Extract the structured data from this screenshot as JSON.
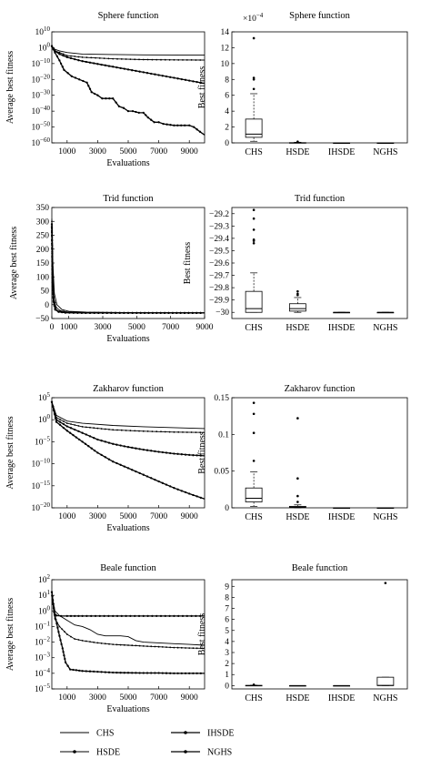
{
  "figure": {
    "legend": [
      "CHS",
      "HSDE",
      "IHSDE",
      "NGHS"
    ]
  },
  "chart_data": [
    {
      "type": "line",
      "title": "Sphere function",
      "xlabel": "Evaluations",
      "ylabel": "Average best fitness",
      "x_ticks": [
        1000,
        3000,
        5000,
        7000,
        9000
      ],
      "xlim": [
        0,
        10000
      ],
      "yscale": "log",
      "ylim": [
        -60,
        10
      ],
      "y_ticks": [
        {
          "exp": 10,
          "label": "10"
        },
        {
          "exp": 0,
          "label": "0"
        },
        {
          "exp": -10,
          "label": "−10"
        },
        {
          "exp": -20,
          "label": "−20"
        },
        {
          "exp": -30,
          "label": "−30"
        },
        {
          "exp": -40,
          "label": "−40"
        },
        {
          "exp": -50,
          "label": "−50"
        },
        {
          "exp": -60,
          "label": "−60"
        }
      ],
      "series": [
        {
          "name": "CHS",
          "x": [
            0,
            200,
            500,
            1000,
            2000,
            4000,
            6000,
            8000,
            10000
          ],
          "y_exp": [
            1,
            -1,
            -2,
            -3,
            -4,
            -4.3,
            -4.5,
            -4.6,
            -4.7
          ]
        },
        {
          "name": "HSDE",
          "x": [
            0,
            200,
            500,
            1000,
            2000,
            4000,
            6000,
            8000,
            10000
          ],
          "y_exp": [
            1,
            -2,
            -3,
            -5,
            -6,
            -7,
            -7.5,
            -7.7,
            -7.8
          ]
        },
        {
          "name": "IHSDE",
          "x": [
            0,
            200,
            500,
            1000,
            2000,
            4000,
            6000,
            8000,
            10000
          ],
          "y_exp": [
            1,
            -2,
            -4,
            -6,
            -8.5,
            -12,
            -15.5,
            -19,
            -22.5
          ]
        },
        {
          "name": "NGHS",
          "x": [
            0,
            200,
            500,
            800,
            1300,
            1800,
            2300,
            2600,
            3000,
            3300,
            4000,
            4400,
            4700,
            5000,
            5300,
            5700,
            6000,
            6300,
            6700,
            7000,
            7300,
            8000,
            8700,
            9000,
            9300,
            9700,
            10000
          ],
          "y_exp": [
            1,
            -3,
            -8,
            -14,
            -18,
            -20,
            -22,
            -28,
            -30,
            -32,
            -32,
            -37,
            -38,
            -40,
            -40,
            -41,
            -41,
            -44,
            -47,
            -47,
            -48,
            -49,
            -49,
            -49,
            -50,
            -53,
            -55
          ]
        }
      ]
    },
    {
      "type": "box",
      "title": "Sphere function",
      "ylabel": "Best fitness",
      "multiplier": "×10",
      "multiplier_exp": "−4",
      "ylim": [
        0,
        14
      ],
      "y_ticks": [
        0,
        2,
        4,
        6,
        8,
        10,
        12,
        14
      ],
      "categories": [
        "CHS",
        "HSDE",
        "IHSDE",
        "NGHS"
      ],
      "boxes": [
        {
          "min": 0.2,
          "q1": 0.7,
          "median": 1.1,
          "q3": 3.0,
          "max": 6.2,
          "outliers": [
            6.8,
            8.0,
            8.2,
            13.2
          ]
        },
        {
          "min": 0,
          "q1": 0,
          "median": 0,
          "q3": 0.03,
          "max": 0.08,
          "outliers": [
            0.15
          ]
        },
        {
          "min": 0,
          "q1": 0,
          "median": 0,
          "q3": 0,
          "max": 0,
          "outliers": []
        },
        {
          "min": 0,
          "q1": 0,
          "median": 0,
          "q3": 0,
          "max": 0,
          "outliers": []
        }
      ]
    },
    {
      "type": "line",
      "title": "Trid function",
      "xlabel": "Evaluations",
      "ylabel": "Average best fitness",
      "x_ticks": [
        0,
        1000,
        3000,
        5000,
        7000,
        9000
      ],
      "xlim": [
        0,
        9000
      ],
      "ylim": [
        -50,
        350
      ],
      "y_ticks": [
        350,
        300,
        250,
        200,
        150,
        100,
        50,
        0,
        -50
      ],
      "series": [
        {
          "name": "CHS",
          "x": [
            0,
            60,
            150,
            300,
            600,
            1000,
            2000,
            5000,
            9000
          ],
          "y": [
            310,
            150,
            40,
            0,
            -18,
            -24,
            -27,
            -29,
            -29.5
          ]
        },
        {
          "name": "HSDE",
          "x": [
            0,
            50,
            120,
            250,
            500,
            900,
            2000,
            5000,
            9000
          ],
          "y": [
            300,
            120,
            25,
            -10,
            -22,
            -27,
            -29,
            -29.8,
            -30
          ]
        },
        {
          "name": "IHSDE",
          "x": [
            0,
            40,
            100,
            200,
            400,
            800,
            2000,
            5000,
            9000
          ],
          "y": [
            280,
            100,
            15,
            -15,
            -25,
            -28,
            -29.8,
            -30,
            -30
          ]
        },
        {
          "name": "NGHS",
          "x": [
            0,
            40,
            100,
            200,
            400,
            800,
            2000,
            5000,
            9000
          ],
          "y": [
            290,
            80,
            10,
            -18,
            -26,
            -29,
            -29.9,
            -30,
            -30
          ]
        }
      ]
    },
    {
      "type": "box",
      "title": "Trid function",
      "ylabel": "Best fitness",
      "ylim": [
        -30.05,
        -29.15
      ],
      "y_ticks": [
        -29.2,
        -29.3,
        -29.4,
        -29.5,
        -29.6,
        -29.7,
        -29.8,
        -29.9,
        -30
      ],
      "y_tick_labels": [
        "−29.2",
        "−29.3",
        "−29.4",
        "−29.5",
        "−29.6",
        "−29.7",
        "−29.8",
        "−29.9",
        "−30"
      ],
      "categories": [
        "CHS",
        "HSDE",
        "IHSDE",
        "NGHS"
      ],
      "boxes": [
        {
          "min": -30,
          "q1": -30,
          "median": -29.97,
          "q3": -29.83,
          "max": -29.68,
          "outliers": [
            -29.17,
            -29.24,
            -29.33,
            -29.41,
            -29.42,
            -29.44
          ]
        },
        {
          "min": -30,
          "q1": -29.99,
          "median": -29.97,
          "q3": -29.93,
          "max": -29.88,
          "outliers": [
            -29.83,
            -29.85,
            -29.86
          ]
        },
        {
          "min": -30,
          "q1": -30,
          "median": -30,
          "q3": -30,
          "max": -30,
          "outliers": []
        },
        {
          "min": -30,
          "q1": -30,
          "median": -30,
          "q3": -30,
          "max": -30,
          "outliers": []
        }
      ]
    },
    {
      "type": "line",
      "title": "Zakharov function",
      "xlabel": "Evaluations",
      "ylabel": "Average best fitness",
      "x_ticks": [
        1000,
        3000,
        5000,
        7000,
        9000
      ],
      "xlim": [
        0,
        10000
      ],
      "yscale": "log",
      "ylim": [
        -20,
        5
      ],
      "y_ticks": [
        {
          "exp": 5,
          "label": "5"
        },
        {
          "exp": 0,
          "label": "0"
        },
        {
          "exp": -5,
          "label": "−5"
        },
        {
          "exp": -10,
          "label": "−10"
        },
        {
          "exp": -15,
          "label": "−15"
        },
        {
          "exp": -20,
          "label": "−20"
        }
      ],
      "series": [
        {
          "name": "CHS",
          "x": [
            0,
            300,
            1000,
            2000,
            4000,
            6000,
            8000,
            10000
          ],
          "y_exp": [
            4,
            1,
            -0.3,
            -0.8,
            -1.3,
            -1.6,
            -1.8,
            -2
          ]
        },
        {
          "name": "HSDE",
          "x": [
            0,
            300,
            1000,
            2000,
            4000,
            6000,
            8000,
            10000
          ],
          "y_exp": [
            4,
            0.5,
            -0.8,
            -1.6,
            -2.3,
            -2.6,
            -2.8,
            -2.9
          ]
        },
        {
          "name": "IHSDE",
          "x": [
            0,
            300,
            1000,
            2000,
            3000,
            4000,
            5000,
            6000,
            7000,
            8000,
            9000,
            10000
          ],
          "y_exp": [
            4,
            0,
            -1.5,
            -3,
            -4.5,
            -5.5,
            -6.2,
            -6.8,
            -7.3,
            -7.7,
            -8,
            -8.2
          ]
        },
        {
          "name": "NGHS",
          "x": [
            0,
            300,
            1000,
            2000,
            3000,
            4000,
            5000,
            6000,
            7000,
            8000,
            9000,
            10000
          ],
          "y_exp": [
            4,
            -0.5,
            -2.5,
            -5,
            -7.5,
            -9.5,
            -11,
            -12.5,
            -14,
            -15.5,
            -16.8,
            -18
          ]
        }
      ]
    },
    {
      "type": "box",
      "title": "Zakharov function",
      "ylabel": "Best fitness",
      "ylim": [
        0,
        0.15
      ],
      "y_ticks": [
        0,
        0.05,
        0.1,
        0.15
      ],
      "categories": [
        "CHS",
        "HSDE",
        "IHSDE",
        "NGHS"
      ],
      "boxes": [
        {
          "min": 0.002,
          "q1": 0.008,
          "median": 0.013,
          "q3": 0.027,
          "max": 0.049,
          "outliers": [
            0.064,
            0.102,
            0.128,
            0.143
          ]
        },
        {
          "min": 0,
          "q1": 0.0005,
          "median": 0.001,
          "q3": 0.002,
          "max": 0.004,
          "outliers": [
            0.008,
            0.016,
            0.04,
            0.122
          ]
        },
        {
          "min": 0,
          "q1": 0,
          "median": 0,
          "q3": 0,
          "max": 0,
          "outliers": []
        },
        {
          "min": 0,
          "q1": 0,
          "median": 0,
          "q3": 0,
          "max": 0,
          "outliers": []
        }
      ]
    },
    {
      "type": "line",
      "title": "Beale function",
      "xlabel": "Evaluations",
      "ylabel": "Average best fitness",
      "x_ticks": [
        1000,
        3000,
        5000,
        7000,
        9000
      ],
      "xlim": [
        0,
        10000
      ],
      "yscale": "log",
      "ylim": [
        -5,
        2
      ],
      "y_ticks": [
        {
          "exp": 2,
          "label": "2"
        },
        {
          "exp": 1,
          "label": "1"
        },
        {
          "exp": 0,
          "label": "0"
        },
        {
          "exp": -1,
          "label": "−1"
        },
        {
          "exp": -2,
          "label": "−2"
        },
        {
          "exp": -3,
          "label": "−3"
        },
        {
          "exp": -4,
          "label": "−4"
        },
        {
          "exp": -5,
          "label": "−5"
        }
      ],
      "series": [
        {
          "name": "CHS",
          "x": [
            0,
            200,
            500,
            1000,
            1500,
            2000,
            2500,
            3000,
            3500,
            4000,
            4500,
            5000,
            5500,
            6000,
            7000,
            8000,
            9000,
            10000
          ],
          "y_exp": [
            1,
            0,
            -0.3,
            -0.6,
            -0.9,
            -1.0,
            -1.2,
            -1.5,
            -1.6,
            -1.6,
            -1.6,
            -1.65,
            -1.9,
            -2.0,
            -2.05,
            -2.1,
            -2.15,
            -2.2
          ]
        },
        {
          "name": "HSDE",
          "x": [
            0,
            200,
            500,
            1000,
            1500,
            2000,
            3000,
            4000,
            5000,
            6000,
            7000,
            8000,
            9000,
            10000
          ],
          "y_exp": [
            1,
            -0.5,
            -1.0,
            -1.5,
            -1.8,
            -1.9,
            -2.05,
            -2.15,
            -2.2,
            -2.25,
            -2.3,
            -2.35,
            -2.38,
            -2.4
          ]
        },
        {
          "name": "IHSDE",
          "x": [
            0,
            200,
            500,
            700,
            900,
            1200,
            1600,
            2000,
            3000,
            4000,
            5000,
            6000,
            7000,
            8000,
            9000,
            10000
          ],
          "y_exp": [
            1.2,
            -0.3,
            -1.6,
            -2.4,
            -3.3,
            -3.75,
            -3.8,
            -3.85,
            -3.9,
            -3.95,
            -3.97,
            -3.98,
            -3.98,
            -4,
            -4,
            -4
          ]
        },
        {
          "name": "NGHS",
          "x": [
            0,
            150,
            300,
            600,
            1000,
            2000,
            4000,
            6000,
            8000,
            10000
          ],
          "y_exp": [
            1.2,
            -0.1,
            -0.3,
            -0.33,
            -0.33,
            -0.33,
            -0.33,
            -0.33,
            -0.33,
            -0.33
          ]
        }
      ]
    },
    {
      "type": "box",
      "title": "Beale function",
      "ylabel": "Best fitness",
      "ylim": [
        -0.3,
        9.6
      ],
      "y_ticks": [
        0,
        1,
        2,
        3,
        4,
        5,
        6,
        7,
        8,
        9
      ],
      "categories": [
        "CHS",
        "HSDE",
        "IHSDE",
        "NGHS"
      ],
      "boxes": [
        {
          "min": 0,
          "q1": 0,
          "median": 0,
          "q3": 0.02,
          "max": 0.04,
          "outliers": [
            0.09
          ]
        },
        {
          "min": 0,
          "q1": 0,
          "median": 0,
          "q3": 0,
          "max": 0,
          "outliers": []
        },
        {
          "min": 0,
          "q1": 0,
          "median": 0,
          "q3": 0,
          "max": 0,
          "outliers": []
        },
        {
          "min": 0,
          "q1": 0,
          "median": 0.02,
          "q3": 0.76,
          "max": 0.76,
          "outliers": [
            9.3
          ]
        }
      ]
    }
  ]
}
